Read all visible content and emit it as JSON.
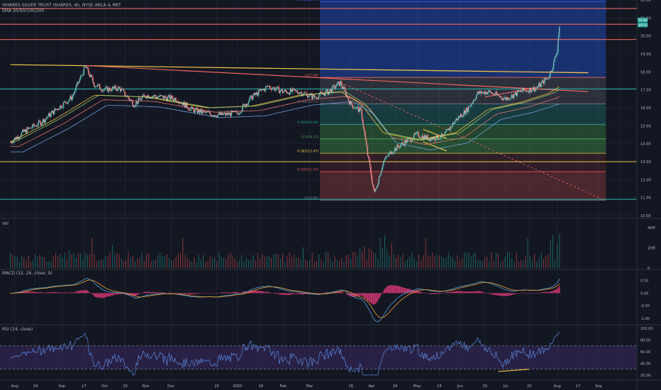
{
  "header": {
    "symbol": "ISHARES SILVER TRUST ISHARES, 4h, NYSE ARCA & MKT",
    "ema_label": "EMA 20/50/100/200"
  },
  "colors": {
    "background": "#131722",
    "grid": "#1e2230",
    "axis_text": "#b2b5be",
    "price_line": "#e0e3eb",
    "ema20": "#f0c040",
    "ema50": "#9ac76a",
    "ema100": "#e07070",
    "ema200": "#6aa0d8",
    "candle_up": "#26a69a",
    "candle_down": "#ef5350",
    "trendline_yellow": "#f7c948",
    "trendline_red": "#ef6461",
    "macd_line": "#4fa3e0",
    "signal_line": "#f0a030",
    "histogram": "#e23b7a",
    "rsi_line": "#5b8ae0",
    "rsi_band": "#3b2a63",
    "current_price_badge": "#26a69a"
  },
  "chart_data": [
    {
      "type": "candlestick",
      "title": "ISHARES SILVER TRUST ISHARES, 4h, NYSE ARCA & MKT",
      "indicator": "EMA 20/50/100/200",
      "ylim": [
        10.0,
        22.0
      ],
      "y_ticks": [
        "10.00",
        "11.00",
        "12.00",
        "13.00",
        "14.00",
        "15.00",
        "16.00",
        "17.00",
        "18.00",
        "19.00",
        "20.00",
        "21.00",
        "22.00"
      ],
      "x_ticks": [
        "Aug",
        "19",
        "Sep",
        "17",
        "Oct",
        "15",
        "Nov",
        "Dec",
        "16",
        "2020",
        "16",
        "Feb",
        "Mar",
        "16",
        "Apr",
        "16",
        "May",
        "15",
        "Jun",
        "15",
        "Jul",
        "20",
        "Aug",
        "17",
        "Sep"
      ],
      "current_price_labels": [
        "20.84",
        "49:03"
      ],
      "price_path": [
        [
          "2019-07-15",
          14.1
        ],
        [
          "2019-07-25",
          14.7
        ],
        [
          "2019-08-05",
          15.2
        ],
        [
          "2019-08-15",
          15.9
        ],
        [
          "2019-08-26",
          16.6
        ],
        [
          "2019-09-04",
          18.3
        ],
        [
          "2019-09-10",
          17.3
        ],
        [
          "2019-09-17",
          17.0
        ],
        [
          "2019-09-27",
          17.1
        ],
        [
          "2019-10-07",
          16.2
        ],
        [
          "2019-10-15",
          16.7
        ],
        [
          "2019-10-25",
          16.6
        ],
        [
          "2019-11-05",
          16.5
        ],
        [
          "2019-11-15",
          15.9
        ],
        [
          "2019-11-25",
          15.7
        ],
        [
          "2019-12-05",
          15.6
        ],
        [
          "2019-12-16",
          15.7
        ],
        [
          "2019-12-26",
          16.6
        ],
        [
          "2020-01-06",
          17.2
        ],
        [
          "2020-01-16",
          16.9
        ],
        [
          "2020-01-27",
          16.9
        ],
        [
          "2020-02-06",
          16.6
        ],
        [
          "2020-02-16",
          16.9
        ],
        [
          "2020-02-24",
          17.4
        ],
        [
          "2020-03-02",
          16.2
        ],
        [
          "2020-03-09",
          15.8
        ],
        [
          "2020-03-13",
          13.6
        ],
        [
          "2020-03-18",
          11.2
        ],
        [
          "2020-03-24",
          13.0
        ],
        [
          "2020-03-30",
          13.6
        ],
        [
          "2020-04-08",
          14.1
        ],
        [
          "2020-04-16",
          14.5
        ],
        [
          "2020-04-24",
          14.3
        ],
        [
          "2020-05-04",
          14.4
        ],
        [
          "2020-05-12",
          15.3
        ],
        [
          "2020-05-20",
          15.9
        ],
        [
          "2020-05-27",
          16.8
        ],
        [
          "2020-06-03",
          16.9
        ],
        [
          "2020-06-15",
          16.5
        ],
        [
          "2020-06-25",
          16.9
        ],
        [
          "2020-07-06",
          17.1
        ],
        [
          "2020-07-14",
          17.7
        ],
        [
          "2020-07-17",
          18.3
        ],
        [
          "2020-07-20",
          19.2
        ],
        [
          "2020-07-21",
          20.2
        ],
        [
          "2020-07-22",
          20.84
        ]
      ],
      "ema_path": [
        [
          "2019-07-15",
          14.1
        ],
        [
          "2019-08-15",
          15.4
        ],
        [
          "2019-09-10",
          16.7
        ],
        [
          "2019-10-15",
          16.6
        ],
        [
          "2019-11-25",
          16.0
        ],
        [
          "2019-12-26",
          16.1
        ],
        [
          "2020-01-27",
          16.7
        ],
        [
          "2020-02-24",
          16.9
        ],
        [
          "2020-03-09",
          16.2
        ],
        [
          "2020-03-24",
          14.6
        ],
        [
          "2020-04-16",
          14.2
        ],
        [
          "2020-05-12",
          14.6
        ],
        [
          "2020-06-03",
          15.9
        ],
        [
          "2020-06-25",
          16.3
        ],
        [
          "2020-07-14",
          16.8
        ],
        [
          "2020-07-22",
          17.2
        ]
      ],
      "horizontal_levels": [
        {
          "price": 21.53,
          "color": "#ef6461"
        },
        {
          "price": 20.65,
          "color": "#ef6461"
        },
        {
          "price": 19.8,
          "color": "#ef6461"
        },
        {
          "price": 17.05,
          "color": "#26a69a"
        },
        {
          "price": 13.0,
          "color": "#f7c948"
        },
        {
          "price": 10.9,
          "color": "#26a69a"
        }
      ],
      "trendlines": [
        {
          "from": [
            "2019-07-15",
            18.4
          ],
          "to": [
            "2020-08-10",
            17.95
          ],
          "color": "#f7c948"
        },
        {
          "from": [
            "2019-09-04",
            18.35
          ],
          "to": [
            "2020-08-10",
            16.9
          ],
          "color": "#ef6461"
        },
        {
          "from": [
            "2020-02-24",
            17.4
          ],
          "to": [
            "2020-08-20",
            10.9
          ],
          "color": "#ef6461",
          "dashed": true
        }
      ],
      "fibonacci": {
        "start": "2020-02-10",
        "end": "2020-08-22",
        "levels": [
          {
            "label": "0(10.86)",
            "price": 10.86,
            "fill": "rgba(239,83,80,0.25)"
          },
          {
            "label": "0.236(12.45)",
            "price": 12.45,
            "fill": "rgba(239,83,80,0.12)"
          },
          {
            "label": "0.382(13.47)",
            "price": 13.47,
            "fill": "rgba(76,175,80,0.35)"
          },
          {
            "label": "0.5(14.27)",
            "price": 14.27,
            "fill": "rgba(76,175,80,0.30)"
          },
          {
            "label": "0.618(15.08)",
            "price": 15.08,
            "fill": "rgba(38,166,154,0.25)"
          },
          {
            "label": "0.786(16.22)",
            "price": 16.22,
            "fill": "rgba(120,123,134,0.25)"
          },
          {
            "label": "1(17.69)",
            "price": 17.69,
            "fill": "rgba(41,98,255,0.35)"
          },
          {
            "label": "1.618(21.90)",
            "price": 21.9,
            "fill": "rgba(41,98,255,0.35)"
          }
        ]
      },
      "pattern_lines": [
        {
          "from": [
            "2020-04-20",
            14.8
          ],
          "to": [
            "2020-05-06",
            14.3
          ],
          "color": "#f7c948"
        },
        {
          "from": [
            "2020-04-20",
            14.1
          ],
          "to": [
            "2020-05-06",
            13.6
          ],
          "color": "#f7c948"
        },
        {
          "from": [
            "2020-06-01",
            16.6
          ],
          "to": [
            "2020-07-10",
            17.2
          ],
          "color": "#ef6461"
        }
      ]
    },
    {
      "type": "bar",
      "title": "Vol",
      "y_ticks": [
        "0",
        "20M",
        "40M"
      ],
      "ylim": [
        0,
        45
      ]
    },
    {
      "type": "line",
      "title": "MACD (12, 26, close, 9)",
      "y_ticks": [
        "-1.00",
        "-0.50",
        "0.00",
        "0.50"
      ],
      "ylim": [
        -1.2,
        0.8
      ]
    },
    {
      "type": "line",
      "title": "RSI (14, close)",
      "y_ticks": [
        "20.00",
        "40.00",
        "60.00",
        "80.00",
        "100.00"
      ],
      "ylim": [
        15,
        100
      ],
      "bands": [
        30,
        70
      ]
    }
  ]
}
